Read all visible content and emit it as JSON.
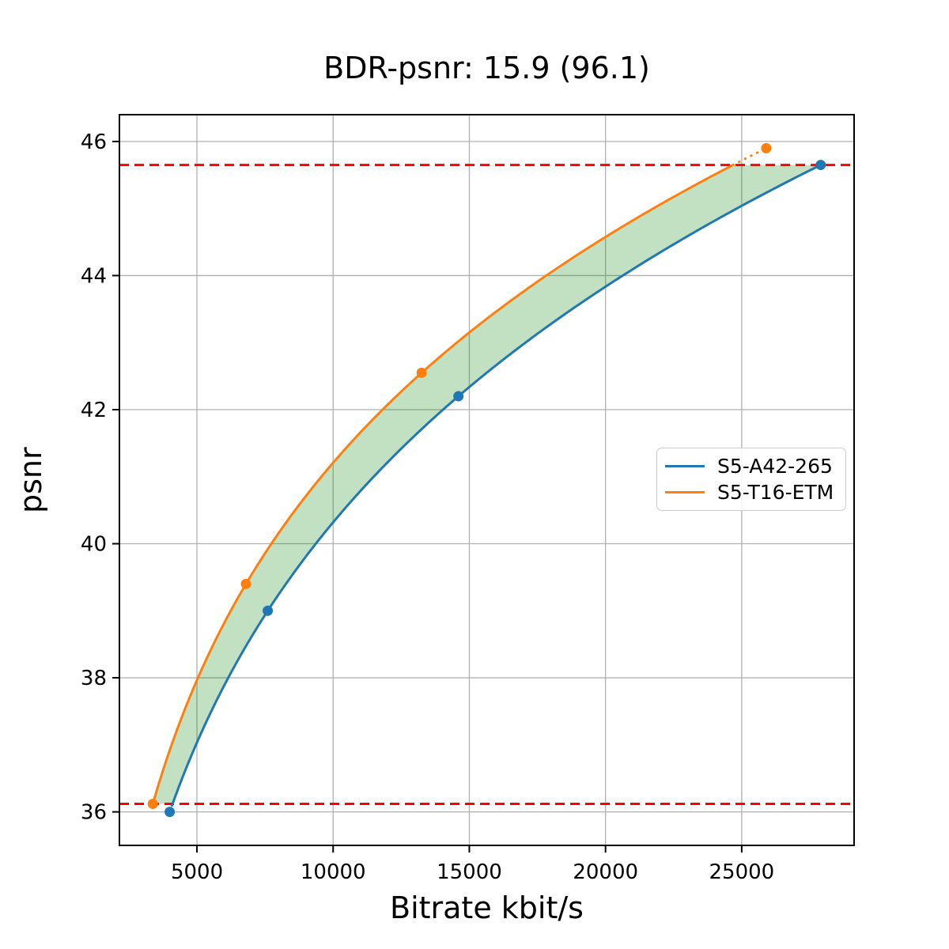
{
  "chart_data": {
    "type": "line",
    "title": "BDR-psnr: 15.9 (96.1)",
    "xlabel": "Bitrate kbit/s",
    "ylabel": "psnr",
    "xlim": [
      2154,
      29126
    ],
    "ylim": [
      35.5,
      46.4
    ],
    "xticks": [
      5000,
      10000,
      15000,
      20000,
      25000
    ],
    "yticks": [
      36,
      38,
      40,
      42,
      44,
      46
    ],
    "grid": true,
    "grid_color": "#b0b0b0",
    "background_color": "#ffffff",
    "legend_position": "center-right",
    "series": [
      {
        "name": "S5-A42-265",
        "color": "#1f77b4",
        "interpolation": "cubic-in-log-x",
        "points": [
          [
            4000,
            36.0
          ],
          [
            7600,
            39.0
          ],
          [
            14600,
            42.2
          ],
          [
            27900,
            45.65
          ]
        ]
      },
      {
        "name": "S5-T16-ETM",
        "color": "#ff7f0e",
        "interpolation": "cubic-in-log-x",
        "points": [
          [
            3380,
            36.12
          ],
          [
            6800,
            39.4
          ],
          [
            13250,
            42.55
          ],
          [
            25900,
            45.9
          ]
        ]
      }
    ],
    "overlap_lines": {
      "color": "#ff0000",
      "style": "dashed",
      "lower": 36.12,
      "upper": 45.65
    },
    "fill_between": {
      "color": "rgba(0,128,0,0.24)",
      "between": [
        "S5-T16-ETM",
        "S5-A42-265"
      ],
      "psnr_range": [
        36.12,
        45.65
      ]
    }
  }
}
